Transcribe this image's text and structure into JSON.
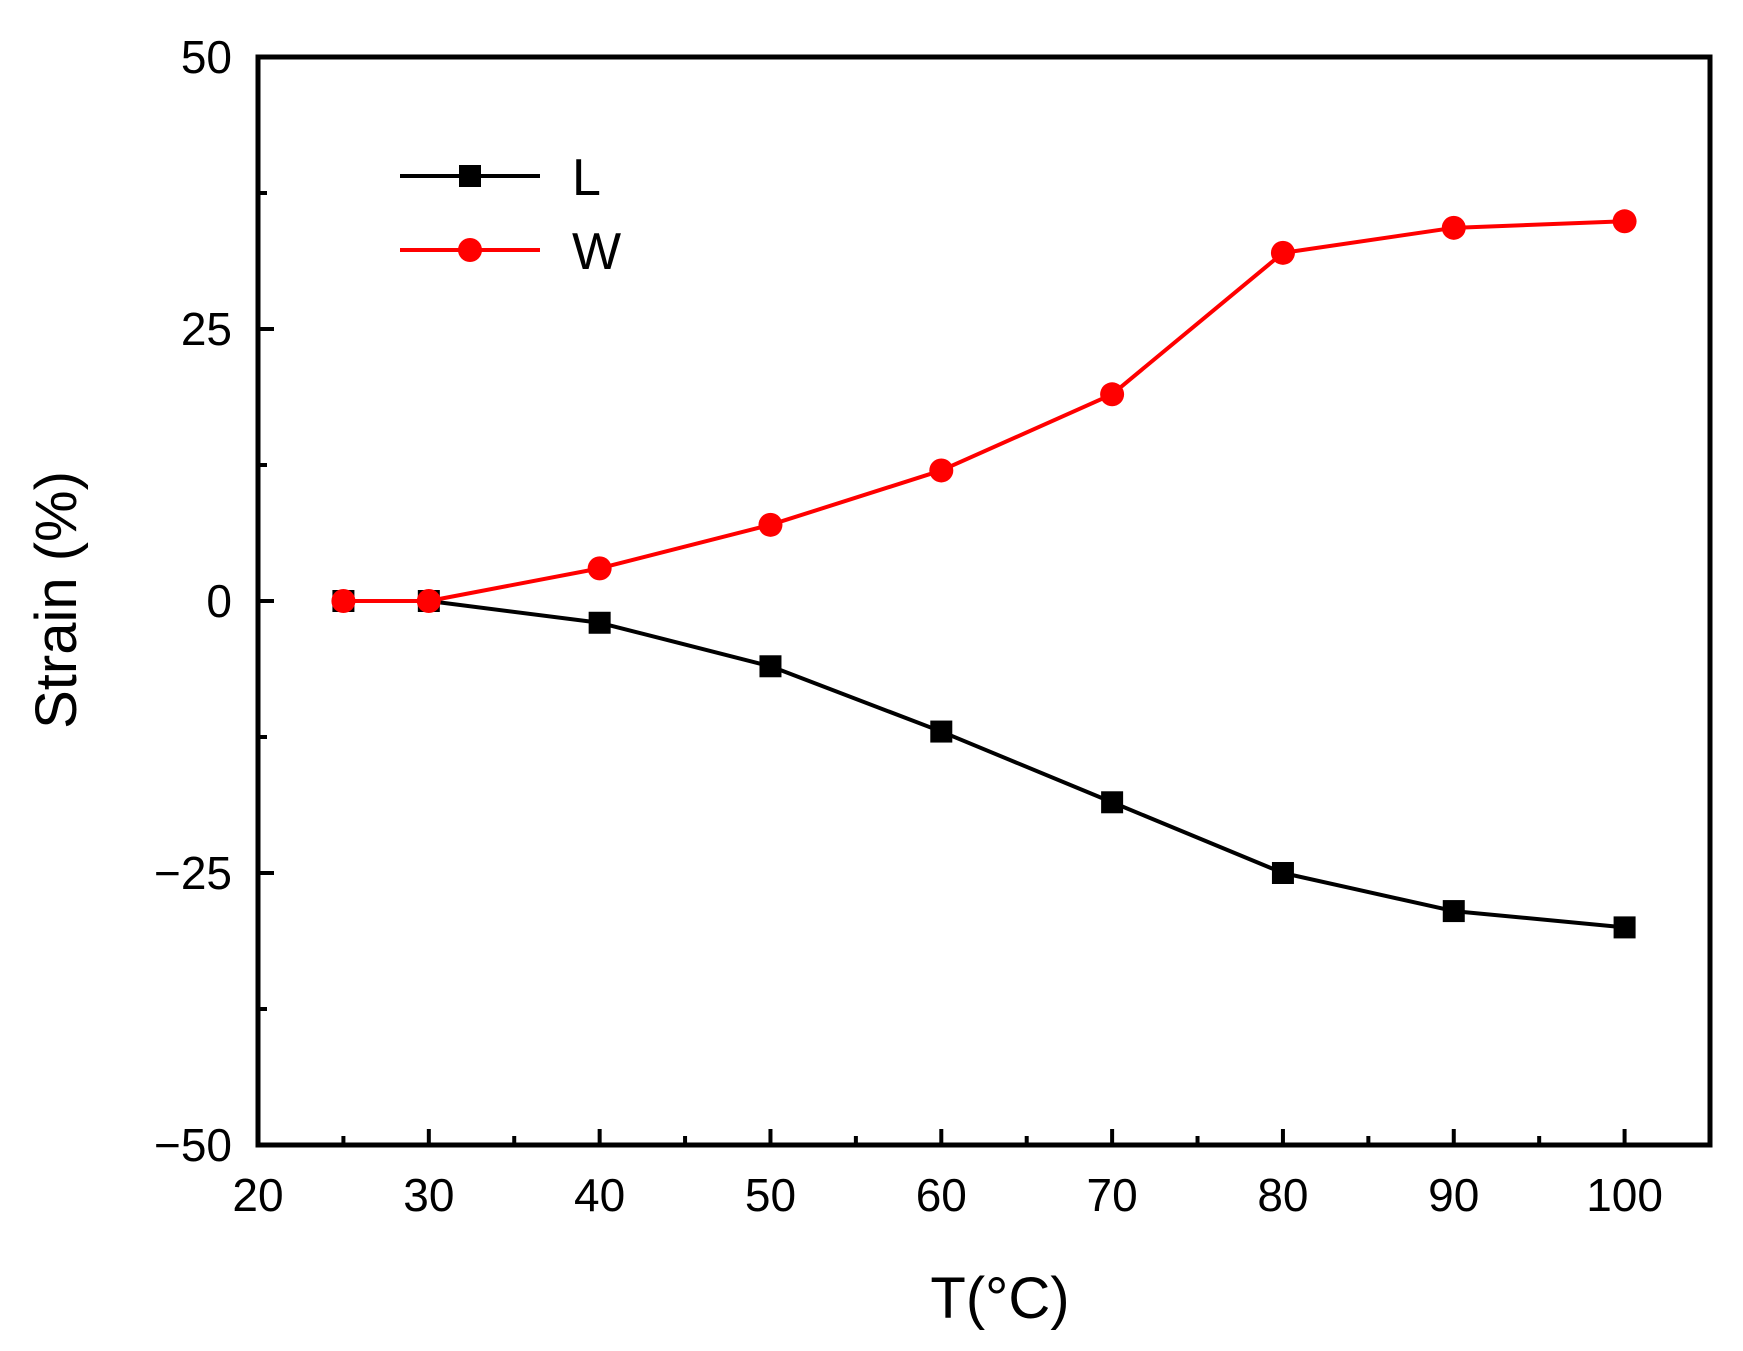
{
  "chart_data": {
    "type": "line",
    "title": "",
    "xlabel": "T(°C)",
    "ylabel": "Strain (%)",
    "xlim": [
      20,
      105
    ],
    "ylim": [
      -50,
      50
    ],
    "x_ticks": [
      20,
      30,
      40,
      50,
      60,
      70,
      80,
      90,
      100
    ],
    "x_tick_labels": [
      "20",
      "30",
      "40",
      "50",
      "60",
      "70",
      "80",
      "90",
      "100"
    ],
    "x_minor_ticks": [
      25,
      35,
      45,
      55,
      65,
      75,
      85,
      95
    ],
    "y_ticks": [
      -50,
      -25,
      0,
      25,
      50
    ],
    "y_tick_labels": [
      "−50",
      "−25",
      "0",
      "25",
      "50"
    ],
    "y_minor_ticks": [
      -37.5,
      -12.5,
      12.5,
      37.5
    ],
    "grid": false,
    "legend_position": "top-left",
    "series": [
      {
        "name": "L",
        "color": "#000000",
        "marker": "square",
        "x": [
          25,
          30,
          40,
          50,
          60,
          70,
          80,
          90,
          100
        ],
        "values": [
          0,
          0,
          -2,
          -6,
          -12,
          -18.5,
          -25,
          -28.5,
          -30
        ]
      },
      {
        "name": "W",
        "color": "#ff0000",
        "marker": "circle",
        "x": [
          25,
          30,
          40,
          50,
          60,
          70,
          80,
          90,
          100
        ],
        "values": [
          0,
          0,
          3,
          7,
          12,
          19,
          32,
          34.3,
          34.9
        ]
      }
    ]
  }
}
